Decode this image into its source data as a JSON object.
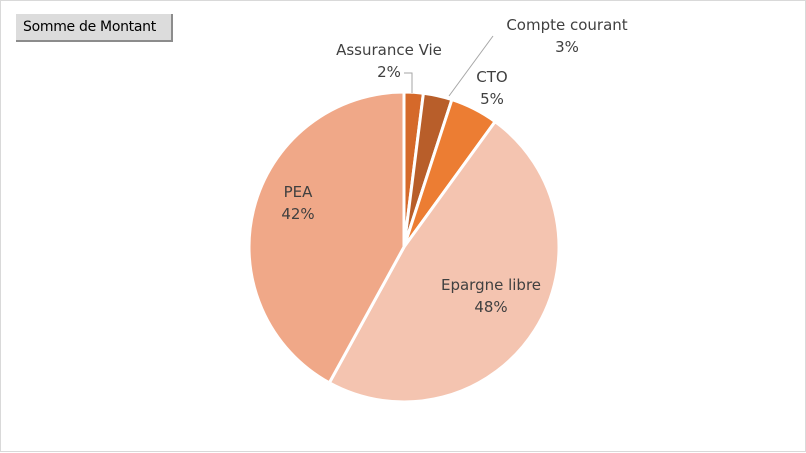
{
  "pivot": {
    "field_button_label": "Somme de Montant"
  },
  "chart_data": {
    "type": "pie",
    "slices": [
      {
        "label": "Assurance Vie",
        "percent": "2%",
        "value": 2,
        "color": "#d5692a"
      },
      {
        "label": "Compte courant",
        "percent": "3%",
        "value": 3,
        "color": "#b85e2a"
      },
      {
        "label": "CTO",
        "percent": "5%",
        "value": 5,
        "color": "#ec7d33"
      },
      {
        "label": "Epargne libre",
        "percent": "48%",
        "value": 48,
        "color": "#f4c4b0"
      },
      {
        "label": "PEA",
        "percent": "42%",
        "value": 42,
        "color": "#f0a888"
      }
    ],
    "start_direction": "top",
    "order": "clockwise"
  }
}
